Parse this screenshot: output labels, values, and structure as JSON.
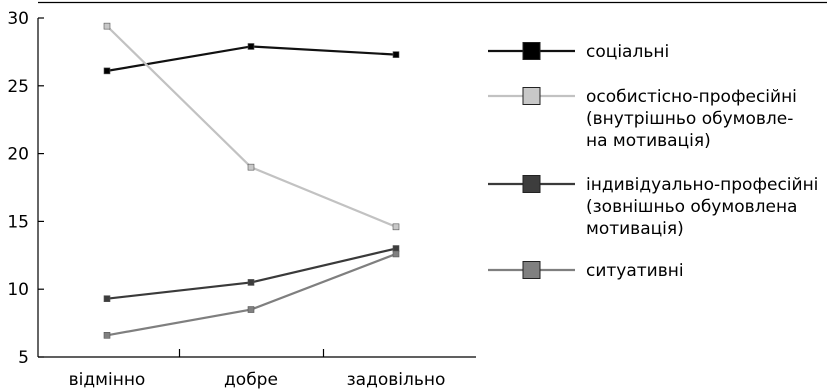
{
  "chart_data": {
    "type": "line",
    "title": "",
    "xlabel": "",
    "ylabel": "",
    "categories": [
      "відмінно",
      "добре",
      "задовільно"
    ],
    "ylim": [
      5,
      30
    ],
    "yticks": [
      5,
      10,
      15,
      20,
      25,
      30
    ],
    "grid": false,
    "legend_position": "right",
    "series": [
      {
        "name_lines": [
          "соціальні"
        ],
        "values": [
          26.1,
          27.9,
          27.3
        ],
        "line_color": "#111111",
        "marker_fill": "#000000"
      },
      {
        "name_lines": [
          "особистісно-професійні",
          "(внутрішньо обумовле-",
          "на мотивація)"
        ],
        "values": [
          29.4,
          19.0,
          14.6
        ],
        "line_color": "#c2c2c2",
        "marker_fill": "#c8c8c8"
      },
      {
        "name_lines": [
          "індивідуально-професійні",
          "(зовнішньо обумовлена",
          "мотивація)"
        ],
        "values": [
          9.3,
          10.5,
          13.0
        ],
        "line_color": "#3a3a3a",
        "marker_fill": "#3d3d3d"
      },
      {
        "name_lines": [
          "ситуативні"
        ],
        "values": [
          6.6,
          8.5,
          12.6
        ],
        "line_color": "#7f7f7f",
        "marker_fill": "#808080"
      }
    ]
  }
}
